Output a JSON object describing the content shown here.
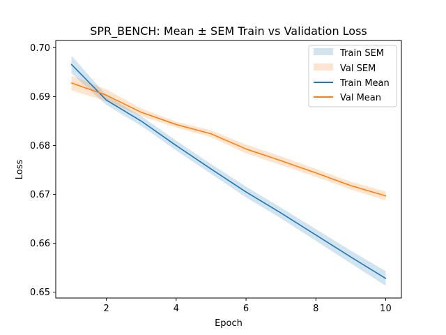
{
  "chart_data": {
    "type": "line",
    "title": "SPR_BENCH: Mean ± SEM Train vs Validation Loss",
    "xlabel": "Epoch",
    "ylabel": "Loss",
    "xlim": [
      0.55,
      10.45
    ],
    "ylim": [
      0.6488,
      0.7015
    ],
    "x_ticks": [
      2,
      4,
      6,
      8,
      10
    ],
    "x_tick_labels": [
      "2",
      "4",
      "6",
      "8",
      "10"
    ],
    "y_ticks": [
      0.65,
      0.66,
      0.67,
      0.68,
      0.69,
      0.7
    ],
    "y_tick_labels": [
      "0.65",
      "0.66",
      "0.67",
      "0.68",
      "0.69",
      "0.70"
    ],
    "grid": false,
    "legend_position": "top-right",
    "x": [
      1,
      2,
      3,
      4,
      5,
      6,
      7,
      8,
      9,
      10
    ],
    "series": [
      {
        "name": "Train Mean",
        "band_name": "Train SEM",
        "color": "#1f77b4",
        "band_color": "#1f77b4",
        "values": [
          0.6966,
          0.6893,
          0.685,
          0.68,
          0.6752,
          0.6705,
          0.6662,
          0.6617,
          0.6572,
          0.6528
        ],
        "sem": [
          0.0018,
          0.001,
          0.001,
          0.001,
          0.001,
          0.0011,
          0.0011,
          0.0012,
          0.0013,
          0.0015
        ]
      },
      {
        "name": "Val Mean",
        "band_name": "Val SEM",
        "color": "#ff7f0e",
        "band_color": "#ff7f0e",
        "values": [
          0.6928,
          0.6903,
          0.6868,
          0.6843,
          0.6824,
          0.6793,
          0.6769,
          0.6744,
          0.6718,
          0.6697
        ],
        "sem": [
          0.0015,
          0.0012,
          0.0008,
          0.0006,
          0.0007,
          0.0009,
          0.0009,
          0.0008,
          0.0008,
          0.0009
        ]
      }
    ],
    "legend": [
      "Train SEM",
      "Val SEM",
      "Train Mean",
      "Val Mean"
    ]
  }
}
